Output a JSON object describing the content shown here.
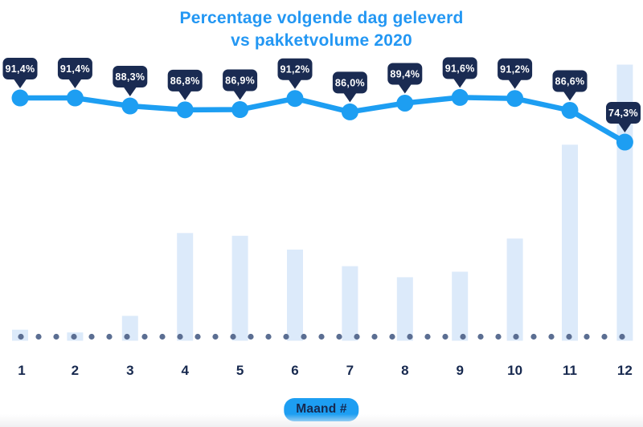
{
  "title": {
    "line1": "Percentage volgende dag geleverd",
    "line2": "vs pakketvolume 2020"
  },
  "x_axis": {
    "badge_label": "Maand #"
  },
  "chart_data": {
    "type": "combo (line + bar)",
    "title": "Percentage volgende dag geleverd vs pakketvolume 2020",
    "xlabel": "Maand #",
    "categories": [
      "1",
      "2",
      "3",
      "4",
      "5",
      "6",
      "7",
      "8",
      "9",
      "10",
      "11",
      "12"
    ],
    "series": [
      {
        "name": "Percentage volgende dag geleverd",
        "type": "line",
        "unit": "%",
        "values": [
          91.4,
          91.4,
          88.3,
          86.8,
          86.9,
          91.2,
          86.0,
          89.4,
          91.6,
          91.2,
          86.6,
          74.3
        ],
        "labels": [
          "91,4%",
          "91,4%",
          "88,3%",
          "86,8%",
          "86,9%",
          "91,2%",
          "86,0%",
          "89,4%",
          "91,6%",
          "91,2%",
          "86,6%",
          "74,3%"
        ]
      },
      {
        "name": "Pakketvolume 2020",
        "type": "bar",
        "unit": "relative height, max bar = 100 (no y-axis shown)",
        "values": [
          4,
          3,
          9,
          39,
          38,
          33,
          27,
          23,
          25,
          37,
          71,
          100
        ]
      }
    ],
    "legend": "none",
    "grid": "dotted horizontal baseline only",
    "data_labels": "dark callout bubbles above each line point"
  },
  "colors": {
    "accent_blue": "#1d9ef2",
    "title_blue": "#2397f3",
    "navy": "#1a2b52",
    "month_label": "#17294f",
    "bar_fill": "#dceafa",
    "baseline_dot": "#5b6e92",
    "callout_text": "#ffffff",
    "background": "#ffffff"
  }
}
